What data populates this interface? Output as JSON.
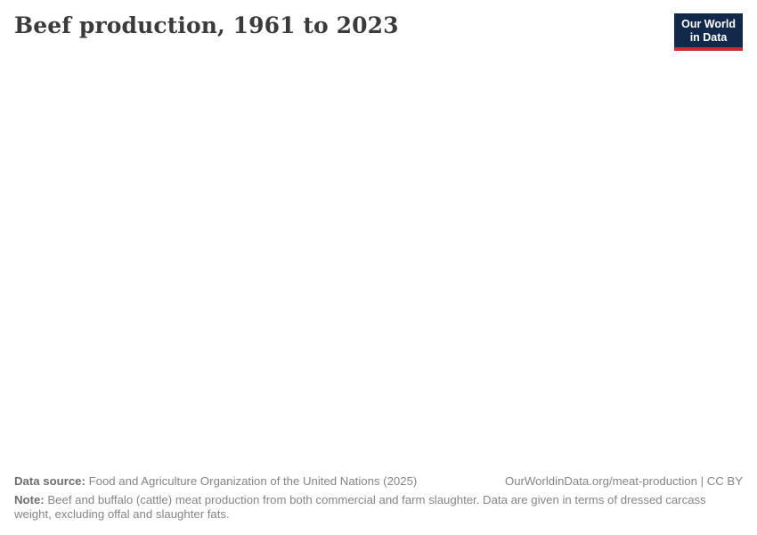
{
  "header": {
    "title": "Beef production, 1961 to 2023",
    "logo": {
      "line1": "Our World",
      "line2": "in Data"
    }
  },
  "chart_data": {
    "type": "line",
    "title": "Beef production, 1961 to 2023",
    "x_range": [
      1961,
      2023
    ],
    "series": [],
    "render_state": "plot area is blank in the screenshot - no axes, gridlines, legend, or data series are rendered"
  },
  "footer": {
    "data_source_label": "Data source:",
    "data_source_text": "Food and Agriculture Organization of the United Nations (2025)",
    "attribution": "OurWorldinData.org/meat-production | CC BY",
    "note_label": "Note:",
    "note_text": "Beef and buffalo (cattle) meat production from both commercial and farm slaughter. Data are given in terms of dressed carcass weight, excluding offal and slaughter fats."
  },
  "colors": {
    "logo_background": "#12294b",
    "logo_accent": "#cc2a36",
    "title_text": "#3b3b3b",
    "footer_text": "#858585"
  }
}
